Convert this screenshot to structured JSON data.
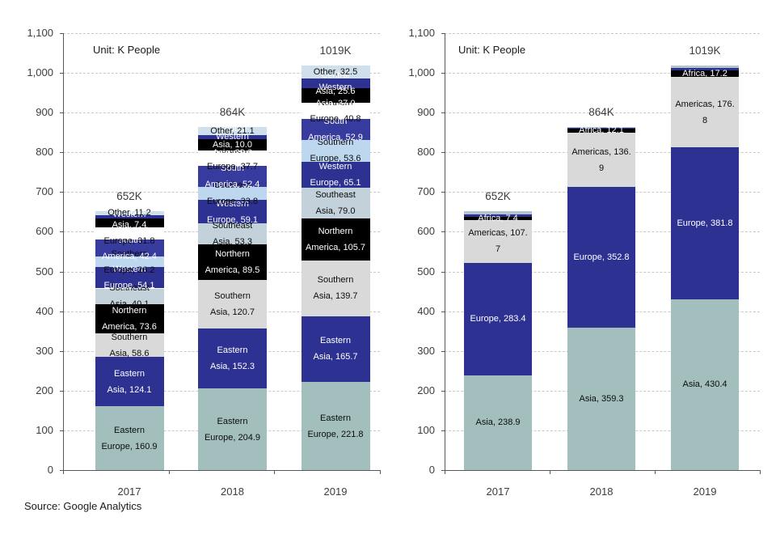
{
  "page": {
    "source_note": "Source: Google Analytics"
  },
  "chart_data": [
    {
      "type": "bar",
      "stacked": true,
      "title": "",
      "unit_label": "Unit: K People",
      "categories": [
        "2017",
        "2018",
        "2019"
      ],
      "totals_labels": [
        "652K",
        "864K",
        "1019K"
      ],
      "ylim": [
        0,
        1100
      ],
      "ytick_step": 100,
      "ytick_labels": [
        "0",
        "100",
        "200",
        "300",
        "400",
        "500",
        "600",
        "700",
        "800",
        "900",
        "1,000",
        "1,100"
      ],
      "grid": "horizontal-dashed",
      "legend": "none",
      "series_bottom_to_top": true,
      "series": [
        {
          "name": "Eastern Europe",
          "color": "#a2bfbe",
          "label_color": "#0d0d0d",
          "values": [
            160.9,
            204.9,
            221.8
          ],
          "label_lines": [
            [
              "Eastern",
              "Europe, 160.9"
            ],
            [
              "Eastern",
              "Europe, 204.9"
            ],
            [
              "Eastern",
              "Europe, 221.8"
            ]
          ]
        },
        {
          "name": "Eastern Asia",
          "color": "#2d3191",
          "label_color": "#ffffff",
          "values": [
            124.1,
            152.3,
            165.7
          ],
          "label_lines": [
            [
              "Eastern",
              "Asia, 124.1"
            ],
            [
              "Eastern",
              "Asia, 152.3"
            ],
            [
              "Eastern",
              "Asia, 165.7"
            ]
          ]
        },
        {
          "name": "Southern Asia",
          "color": "#d9d9d9",
          "label_color": "#0d0d0d",
          "values": [
            58.6,
            120.7,
            139.7
          ],
          "label_lines": [
            [
              "Southern",
              "Asia, 58.6"
            ],
            [
              "Southern",
              "Asia, 120.7"
            ],
            [
              "Southern",
              "Asia, 139.7"
            ]
          ]
        },
        {
          "name": "Northern America",
          "color": "#000000",
          "label_color": "#ffffff",
          "values": [
            73.6,
            89.5,
            105.7
          ],
          "label_lines": [
            [
              "Northern",
              "America, 73.6"
            ],
            [
              "Northern",
              "America, 89.5"
            ],
            [
              "Northern",
              "America, 105.7"
            ]
          ]
        },
        {
          "name": "Southeast Asia",
          "color": "#c3d2da",
          "label_color": "#0d0d0d",
          "values": [
            40.1,
            53.3,
            79.0
          ],
          "label_lines": [
            [
              "Southeast",
              "Asia, 40.1"
            ],
            [
              "Southeast",
              "Asia, 53.3"
            ],
            [
              "Southeast",
              "Asia, 79.0"
            ]
          ]
        },
        {
          "name": "Western Europe",
          "color": "#2d3191",
          "label_color": "#ffffff",
          "values": [
            54.1,
            59.1,
            65.1
          ],
          "label_lines": [
            [
              "Western",
              "Europe, 54.1"
            ],
            [
              "Western",
              "Europe, 59.1"
            ],
            [
              "Western",
              "Europe, 65.1"
            ]
          ]
        },
        {
          "name": "Southern Europe",
          "color": "#bdd7ee",
          "label_color": "#0d0d0d",
          "values": [
            26.2,
            33.8,
            53.6
          ],
          "label_lines": [
            [
              "Southern",
              "Europe, 26.2"
            ],
            [
              "Southern",
              "Europe, 33.8"
            ],
            [
              "Southern",
              "Europe, 53.6"
            ]
          ]
        },
        {
          "name": "South America",
          "color": "#383b9e",
          "label_color": "#ffffff",
          "values": [
            42.4,
            52.4,
            52.9
          ],
          "label_lines": [
            [
              "South",
              "America, 42.4"
            ],
            [
              "South",
              "America, 52.4"
            ],
            [
              "South",
              "America, 52.9"
            ]
          ]
        },
        {
          "name": "Northern Europe",
          "color": "#ffffff",
          "label_color": "#0d0d0d",
          "values": [
            31.8,
            37.7,
            40.8
          ],
          "label_lines": [
            [
              "Northern",
              "Europe, 31.8"
            ],
            [
              "Northern",
              "Europe, 37.7"
            ],
            [
              "Northern",
              "Europe, 40.8"
            ]
          ]
        },
        {
          "name": "Western Asia",
          "color": "#000000",
          "label_color": "#ffffff",
          "values": [
            22.0,
            29.6,
            37.0
          ],
          "label_lines": [
            [
              "Western",
              "Asia, 22.0"
            ],
            [
              "Western",
              "Asia, 29.6"
            ],
            [
              "Western",
              "Asia, 37.0"
            ]
          ]
        },
        {
          "name": "Central Asia",
          "color": "#2d3191",
          "label_color": "#ffffff",
          "values": [
            7.4,
            10.0,
            25.6
          ],
          "label_lines": [
            [
              "Central",
              "Asia, 7.4"
            ],
            [
              "Central",
              "Asia, 10.0"
            ],
            [
              "Central",
              "Asia, 25.6"
            ]
          ]
        },
        {
          "name": "Other",
          "color": "#cfe0ec",
          "label_color": "#0d0d0d",
          "values": [
            11.2,
            21.1,
            32.5
          ],
          "label_lines": [
            [
              "Other, 11.2"
            ],
            [
              "Other, 21.1"
            ],
            [
              "Other, 32.5"
            ]
          ]
        }
      ]
    },
    {
      "type": "bar",
      "stacked": true,
      "title": "",
      "unit_label": "Unit: K People",
      "categories": [
        "2017",
        "2018",
        "2019"
      ],
      "totals_labels": [
        "652K",
        "864K",
        "1019K"
      ],
      "ylim": [
        0,
        1100
      ],
      "ytick_step": 100,
      "ytick_labels": [
        "0",
        "100",
        "200",
        "300",
        "400",
        "500",
        "600",
        "700",
        "800",
        "900",
        "1,000",
        "1,100"
      ],
      "grid": "horizontal-dashed",
      "legend": "none",
      "series_bottom_to_top": true,
      "series": [
        {
          "name": "Asia",
          "color": "#a2bfbe",
          "label_color": "#0d0d0d",
          "values": [
            238.9,
            359.3,
            430.4
          ],
          "label_lines": [
            [
              "Asia, 238.9"
            ],
            [
              "Asia, 359.3"
            ],
            [
              "Asia, 430.4"
            ]
          ]
        },
        {
          "name": "Europe",
          "color": "#2d3191",
          "label_color": "#ffffff",
          "values": [
            283.4,
            352.8,
            381.8
          ],
          "label_lines": [
            [
              "Europe, 283.4"
            ],
            [
              "Europe, 352.8"
            ],
            [
              "Europe, 381.8"
            ]
          ]
        },
        {
          "name": "Americas",
          "color": "#d9d9d9",
          "label_color": "#0d0d0d",
          "values": [
            107.7,
            136.9,
            176.8
          ],
          "label_lines": [
            [
              "Americas, 107.",
              "7"
            ],
            [
              "Americas, 136.",
              "9"
            ],
            [
              "Americas, 176.",
              "8"
            ]
          ]
        },
        {
          "name": "Africa",
          "color": "#000000",
          "label_color": "#ffffff",
          "values": [
            7.4,
            12.1,
            17.2
          ],
          "label_lines": [
            [
              "Africa, 7.4"
            ],
            [
              "Africa, 12.1"
            ],
            [
              "Africa, 17.2"
            ]
          ]
        },
        {
          "name": "Oceania",
          "color": "#2d3191",
          "label_color": "#ffffff",
          "values": [
            6.0,
            1.5,
            5.4
          ],
          "label_lines": [
            null,
            null,
            null
          ]
        },
        {
          "name": "Other",
          "color": "#b3c4cd",
          "label_color": "#0d0d0d",
          "values": [
            9.0,
            1.8,
            7.8
          ],
          "label_lines": [
            null,
            null,
            null
          ]
        }
      ]
    }
  ]
}
